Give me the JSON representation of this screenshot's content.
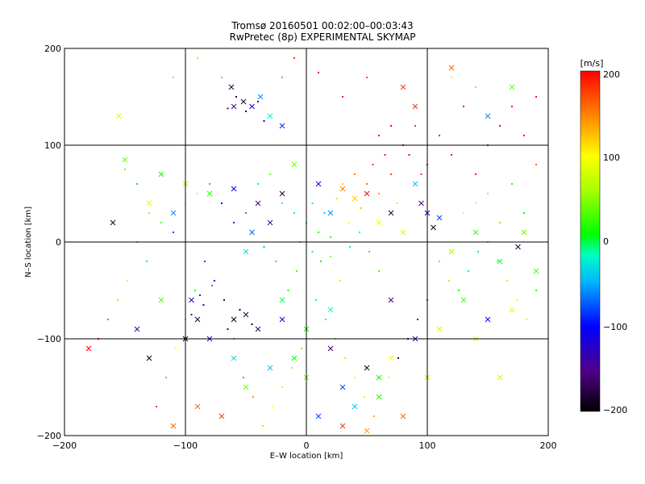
{
  "chart_data": {
    "type": "scatter",
    "title": "Tromsø 20160501 00:02:00–00:03:43",
    "subtitle": "RwPretec (8p) EXPERIMENTAL SKYMAP",
    "xlabel": "E–W location [km]",
    "ylabel": "N–S location [km]",
    "xlim": [
      -200,
      200
    ],
    "ylim": [
      -200,
      200
    ],
    "xticks": [
      "−200",
      "−100",
      "0",
      "100",
      "200"
    ],
    "yticks": [
      "−200",
      "−100",
      "0",
      "100",
      "200"
    ],
    "grid": true,
    "colorbar": {
      "label": "[m/s]",
      "range": [
        -200,
        200
      ],
      "ticks": [
        "200",
        "100",
        "0",
        "−100",
        "−200"
      ]
    },
    "series": [
      {
        "marker": "x",
        "points": [
          [
            -155,
            130,
            80
          ],
          [
            -62,
            160,
            -180
          ],
          [
            -52,
            145,
            -190
          ],
          [
            -60,
            140,
            -150
          ],
          [
            -45,
            140,
            -120
          ],
          [
            -38,
            150,
            -60
          ],
          [
            -30,
            130,
            -20
          ],
          [
            -20,
            120,
            -90
          ],
          [
            -150,
            85,
            40
          ],
          [
            -120,
            70,
            10
          ],
          [
            -100,
            60,
            60
          ],
          [
            -80,
            50,
            20
          ],
          [
            -60,
            55,
            -100
          ],
          [
            -40,
            40,
            -160
          ],
          [
            -30,
            20,
            -140
          ],
          [
            -45,
            10,
            -70
          ],
          [
            -50,
            -10,
            -30
          ],
          [
            -20,
            50,
            -180
          ],
          [
            -10,
            80,
            40
          ],
          [
            10,
            60,
            -120
          ],
          [
            20,
            30,
            -60
          ],
          [
            30,
            55,
            150
          ],
          [
            40,
            45,
            120
          ],
          [
            50,
            50,
            200
          ],
          [
            60,
            20,
            100
          ],
          [
            70,
            30,
            -180
          ],
          [
            80,
            10,
            80
          ],
          [
            90,
            60,
            -40
          ],
          [
            95,
            40,
            -150
          ],
          [
            100,
            30,
            -120
          ],
          [
            105,
            15,
            -190
          ],
          [
            110,
            25,
            -80
          ],
          [
            120,
            -10,
            60
          ],
          [
            140,
            10,
            20
          ],
          [
            160,
            -20,
            0
          ],
          [
            175,
            -5,
            -180
          ],
          [
            180,
            10,
            40
          ],
          [
            190,
            -30,
            30
          ],
          [
            150,
            130,
            -60
          ],
          [
            170,
            160,
            40
          ],
          [
            120,
            180,
            160
          ],
          [
            90,
            140,
            180
          ],
          [
            80,
            160,
            180
          ],
          [
            -160,
            20,
            -180
          ],
          [
            -130,
            40,
            80
          ],
          [
            -110,
            30,
            -60
          ],
          [
            -95,
            -60,
            -120
          ],
          [
            -90,
            -80,
            -180
          ],
          [
            -100,
            -100,
            -200
          ],
          [
            -80,
            -100,
            -120
          ],
          [
            -60,
            -80,
            -200
          ],
          [
            -50,
            -75,
            -180
          ],
          [
            -40,
            -90,
            -170
          ],
          [
            -20,
            -80,
            -100
          ],
          [
            -10,
            -120,
            10
          ],
          [
            0,
            -140,
            40
          ],
          [
            20,
            -110,
            -160
          ],
          [
            30,
            -150,
            -80
          ],
          [
            40,
            -170,
            -40
          ],
          [
            50,
            -130,
            -190
          ],
          [
            60,
            -160,
            20
          ],
          [
            70,
            -120,
            100
          ],
          [
            80,
            -180,
            160
          ],
          [
            90,
            -100,
            -140
          ],
          [
            100,
            -140,
            60
          ],
          [
            110,
            -90,
            80
          ],
          [
            130,
            -60,
            30
          ],
          [
            150,
            -80,
            -100
          ],
          [
            170,
            -70,
            90
          ],
          [
            -110,
            -190,
            160
          ],
          [
            -90,
            -170,
            160
          ],
          [
            -70,
            -180,
            180
          ],
          [
            -50,
            -150,
            40
          ],
          [
            -30,
            -130,
            -40
          ],
          [
            -130,
            -120,
            -200
          ],
          [
            -180,
            -110,
            200
          ],
          [
            -140,
            -90,
            -140
          ],
          [
            -120,
            -60,
            30
          ],
          [
            10,
            -180,
            -80
          ],
          [
            30,
            -190,
            180
          ],
          [
            50,
            -195,
            140
          ],
          [
            60,
            -140,
            10
          ],
          [
            70,
            -60,
            -150
          ],
          [
            20,
            -70,
            -20
          ],
          [
            0,
            -90,
            10
          ],
          [
            -20,
            -60,
            0
          ],
          [
            -60,
            -120,
            -30
          ],
          [
            140,
            -100,
            90
          ],
          [
            160,
            -140,
            70
          ]
        ]
      },
      {
        "marker": "dot",
        "points": [
          [
            -58,
            150,
            -180
          ],
          [
            -50,
            135,
            -170
          ],
          [
            -40,
            145,
            -160
          ],
          [
            -65,
            138,
            -140
          ],
          [
            -35,
            125,
            -100
          ],
          [
            -70,
            170,
            30
          ],
          [
            -90,
            190,
            60
          ],
          [
            -110,
            170,
            120
          ],
          [
            -20,
            170,
            150
          ],
          [
            -10,
            190,
            180
          ],
          [
            10,
            175,
            200
          ],
          [
            30,
            150,
            190
          ],
          [
            50,
            170,
            170
          ],
          [
            70,
            120,
            200
          ],
          [
            60,
            110,
            200
          ],
          [
            80,
            100,
            200
          ],
          [
            90,
            120,
            180
          ],
          [
            100,
            80,
            200
          ],
          [
            110,
            110,
            200
          ],
          [
            120,
            90,
            190
          ],
          [
            130,
            140,
            200
          ],
          [
            140,
            70,
            200
          ],
          [
            150,
            100,
            200
          ],
          [
            160,
            120,
            200
          ],
          [
            170,
            140,
            200
          ],
          [
            180,
            110,
            200
          ],
          [
            190,
            150,
            200
          ],
          [
            140,
            160,
            120
          ],
          [
            120,
            170,
            90
          ],
          [
            -150,
            75,
            40
          ],
          [
            -140,
            60,
            10
          ],
          [
            -130,
            30,
            60
          ],
          [
            -120,
            20,
            30
          ],
          [
            -110,
            10,
            -80
          ],
          [
            -100,
            40,
            90
          ],
          [
            -90,
            50,
            110
          ],
          [
            -80,
            60,
            -40
          ],
          [
            -70,
            40,
            -120
          ],
          [
            -60,
            20,
            -90
          ],
          [
            -50,
            30,
            -60
          ],
          [
            -40,
            60,
            -10
          ],
          [
            -30,
            70,
            40
          ],
          [
            -20,
            40,
            -20
          ],
          [
            -10,
            30,
            -10
          ],
          [
            0,
            20,
            0
          ],
          [
            5,
            40,
            -20
          ],
          [
            10,
            10,
            10
          ],
          [
            15,
            30,
            -40
          ],
          [
            20,
            5,
            20
          ],
          [
            25,
            45,
            60
          ],
          [
            30,
            60,
            120
          ],
          [
            35,
            20,
            90
          ],
          [
            40,
            70,
            150
          ],
          [
            45,
            35,
            130
          ],
          [
            50,
            60,
            160
          ],
          [
            55,
            80,
            180
          ],
          [
            60,
            50,
            140
          ],
          [
            65,
            90,
            190
          ],
          [
            70,
            70,
            170
          ],
          [
            75,
            40,
            110
          ],
          [
            85,
            90,
            200
          ],
          [
            95,
            70,
            180
          ],
          [
            5,
            -10,
            0
          ],
          [
            -5,
            0,
            -20
          ],
          [
            12,
            -20,
            10
          ],
          [
            -8,
            -30,
            30
          ],
          [
            20,
            -15,
            50
          ],
          [
            28,
            -40,
            70
          ],
          [
            -15,
            -50,
            20
          ],
          [
            -25,
            -20,
            -30
          ],
          [
            -35,
            -5,
            -50
          ],
          [
            8,
            -60,
            -10
          ],
          [
            16,
            -80,
            30
          ],
          [
            24,
            -100,
            50
          ],
          [
            32,
            -120,
            70
          ],
          [
            40,
            -140,
            90
          ],
          [
            48,
            -160,
            110
          ],
          [
            56,
            -180,
            130
          ],
          [
            -4,
            -110,
            40
          ],
          [
            -12,
            -130,
            60
          ],
          [
            -20,
            -150,
            80
          ],
          [
            -28,
            -170,
            100
          ],
          [
            -36,
            -190,
            120
          ],
          [
            -44,
            -160,
            140
          ],
          [
            -52,
            -140,
            160
          ],
          [
            -60,
            -100,
            -40
          ],
          [
            -68,
            -60,
            -160
          ],
          [
            -76,
            -40,
            -120
          ],
          [
            -84,
            -20,
            -80
          ],
          [
            -92,
            -50,
            20
          ],
          [
            -100,
            -80,
            60
          ],
          [
            -108,
            -110,
            100
          ],
          [
            -116,
            -140,
            140
          ],
          [
            -124,
            -170,
            180
          ],
          [
            -132,
            -20,
            0
          ],
          [
            -140,
            0,
            40
          ],
          [
            -148,
            -40,
            80
          ],
          [
            -156,
            -60,
            120
          ],
          [
            -164,
            -80,
            160
          ],
          [
            -172,
            -100,
            200
          ],
          [
            110,
            -20,
            40
          ],
          [
            118,
            -40,
            60
          ],
          [
            126,
            -50,
            20
          ],
          [
            134,
            -30,
            -20
          ],
          [
            142,
            -10,
            0
          ],
          [
            150,
            0,
            30
          ],
          [
            158,
            -20,
            50
          ],
          [
            166,
            -40,
            70
          ],
          [
            174,
            -60,
            90
          ],
          [
            182,
            -80,
            110
          ],
          [
            190,
            -50,
            20
          ],
          [
            130,
            30,
            100
          ],
          [
            140,
            40,
            80
          ],
          [
            150,
            50,
            60
          ],
          [
            160,
            20,
            40
          ],
          [
            170,
            60,
            20
          ],
          [
            180,
            30,
            10
          ],
          [
            190,
            80,
            160
          ],
          [
            100,
            -60,
            -60
          ],
          [
            92,
            -80,
            -100
          ],
          [
            84,
            -100,
            -140
          ],
          [
            76,
            -120,
            -180
          ],
          [
            68,
            -140,
            80
          ],
          [
            60,
            -30,
            30
          ],
          [
            52,
            -10,
            10
          ],
          [
            44,
            10,
            -10
          ],
          [
            36,
            -5,
            -30
          ],
          [
            -45,
            -85,
            -190
          ],
          [
            -55,
            -70,
            -200
          ],
          [
            -65,
            -90,
            -170
          ],
          [
            -85,
            -65,
            -130
          ],
          [
            -95,
            -75,
            -110
          ],
          [
            -88,
            -55,
            -90
          ],
          [
            -78,
            -45,
            -60
          ]
        ]
      }
    ]
  }
}
